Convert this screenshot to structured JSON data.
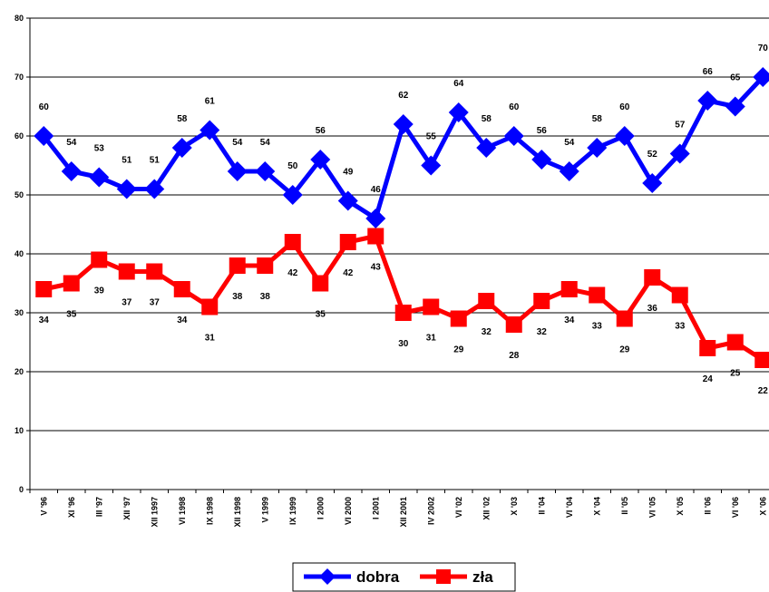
{
  "chart_data": {
    "type": "line",
    "categories": [
      "V '96",
      "XI '96",
      "III '97",
      "XII '97",
      "XII 1997",
      "VI 1998",
      "IX 1998",
      "XII 1998",
      "V 1999",
      "IX 1999",
      "I 2000",
      "VI 2000",
      "I 2001",
      "XII 2001",
      "IV 2002",
      "VI '02",
      "XII '02",
      "X '03",
      "II '04",
      "VI '04",
      "X '04",
      "II '05",
      "VI '05",
      "X '05",
      "II '06",
      "VI '06",
      "X '06"
    ],
    "series": [
      {
        "name": "dobra",
        "color": "#0000ff",
        "marker": "diamond",
        "values": [
          60,
          54,
          53,
          51,
          51,
          58,
          61,
          54,
          54,
          50,
          56,
          49,
          46,
          62,
          55,
          64,
          58,
          60,
          56,
          54,
          58,
          60,
          52,
          57,
          66,
          65,
          70
        ]
      },
      {
        "name": "zła",
        "color": "#ff0000",
        "marker": "square",
        "values": [
          34,
          35,
          39,
          37,
          37,
          34,
          31,
          38,
          38,
          42,
          35,
          42,
          43,
          30,
          31,
          29,
          32,
          28,
          32,
          34,
          33,
          29,
          36,
          33,
          24,
          25,
          22
        ]
      }
    ],
    "ylim": [
      0,
      80
    ],
    "yticks": [
      0,
      10,
      20,
      30,
      40,
      50,
      60,
      70,
      80
    ],
    "grid": true,
    "legend": "bottom"
  }
}
